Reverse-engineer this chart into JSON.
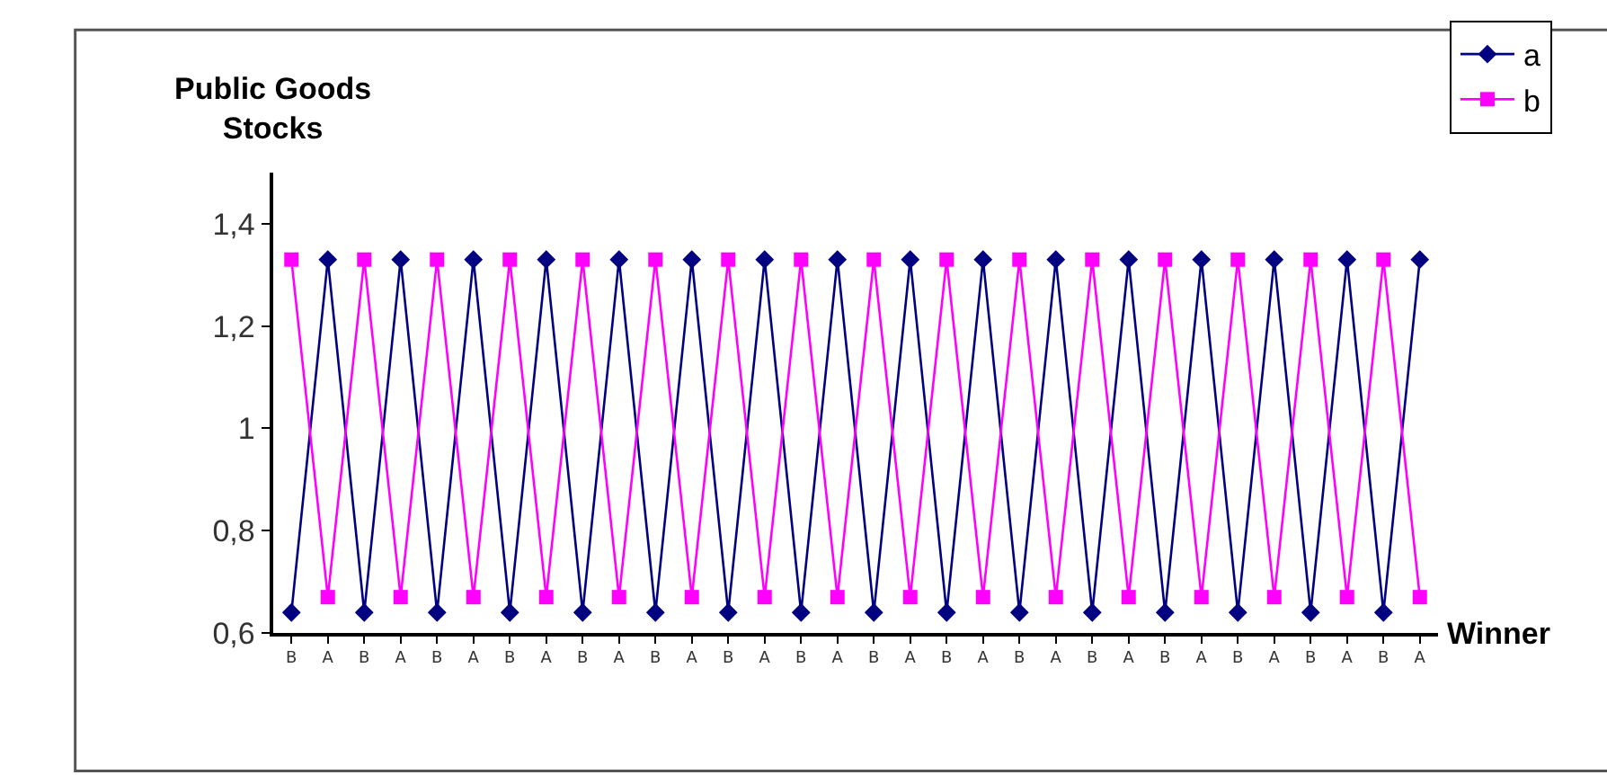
{
  "chart_data": {
    "type": "line",
    "ylabel": "Public Goods\nStocks",
    "xlabel": "Winner",
    "categories": [
      "B",
      "A",
      "B",
      "A",
      "B",
      "A",
      "B",
      "A",
      "B",
      "A",
      "B",
      "A",
      "B",
      "A",
      "B",
      "A",
      "B",
      "A",
      "B",
      "A",
      "B",
      "A",
      "B",
      "A",
      "B",
      "A",
      "B",
      "A",
      "B",
      "A",
      "B",
      "A"
    ],
    "series": [
      {
        "name": "a",
        "color": "#000080",
        "marker": "diamond",
        "values": [
          0.64,
          1.33,
          0.64,
          1.33,
          0.64,
          1.33,
          0.64,
          1.33,
          0.64,
          1.33,
          0.64,
          1.33,
          0.64,
          1.33,
          0.64,
          1.33,
          0.64,
          1.33,
          0.64,
          1.33,
          0.64,
          1.33,
          0.64,
          1.33,
          0.64,
          1.33,
          0.64,
          1.33,
          0.64,
          1.33,
          0.64,
          1.33
        ]
      },
      {
        "name": "b",
        "color": "#ff00ff",
        "marker": "square",
        "values": [
          1.33,
          0.67,
          1.33,
          0.67,
          1.33,
          0.67,
          1.33,
          0.67,
          1.33,
          0.67,
          1.33,
          0.67,
          1.33,
          0.67,
          1.33,
          0.67,
          1.33,
          0.67,
          1.33,
          0.67,
          1.33,
          0.67,
          1.33,
          0.67,
          1.33,
          0.67,
          1.33,
          0.67,
          1.33,
          0.67,
          1.33,
          0.67
        ]
      }
    ],
    "ylim": [
      0.6,
      1.5
    ],
    "yticks": [
      {
        "value": 0.6,
        "label": "0,6"
      },
      {
        "value": 0.8,
        "label": "0,8"
      },
      1,
      {
        "value": 1.2,
        "label": "1,2"
      },
      {
        "value": 1.4,
        "label": "1,4"
      }
    ],
    "grid": false,
    "legend": "top right",
    "line_style": "solid"
  }
}
